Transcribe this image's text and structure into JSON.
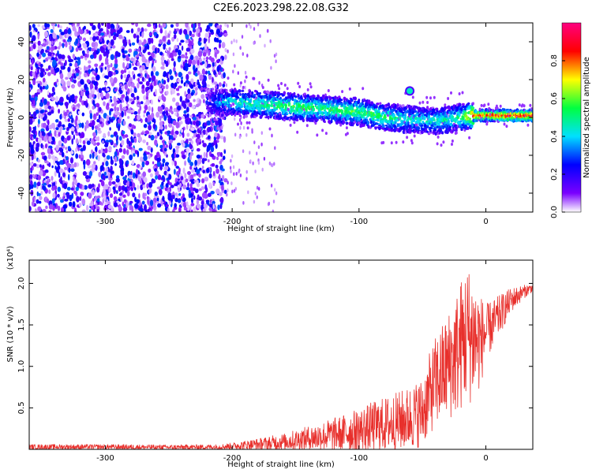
{
  "figure_title": "C2E6.2023.298.22.08.G32",
  "colors": {
    "snr_line": "#e8302c",
    "axis": "#000000",
    "background": "#ffffff"
  },
  "chart_data": [
    {
      "type": "heatmap",
      "title": "C2E6.2023.298.22.08.G32",
      "xlabel": "Height of straight line (km)",
      "ylabel": "Frequency (Hz)",
      "xlim": [
        -360,
        37
      ],
      "ylim": [
        -50,
        50
      ],
      "x_ticks": [
        -300,
        -200,
        -100,
        0
      ],
      "y_ticks": [
        -40,
        -20,
        0,
        20,
        40
      ],
      "colorbar": {
        "label": "Normalized spectral amplitude",
        "range": [
          0,
          1
        ],
        "ticks": [
          0.0,
          0.2,
          0.4,
          0.6,
          0.8
        ],
        "colormap": [
          "#ffffff",
          "#7a00ff",
          "#0000ff",
          "#00e0ff",
          "#00ff40",
          "#ffff00",
          "#ff0000",
          "#ff0080"
        ]
      },
      "signal_track": {
        "noise_region_x": [
          -360,
          -205
        ],
        "noise_amplitude": 0.2,
        "trace": [
          {
            "x": -220,
            "f": 8,
            "amp": 0.25
          },
          {
            "x": -200,
            "f": 8,
            "amp": 0.45
          },
          {
            "x": -180,
            "f": 7,
            "amp": 0.5
          },
          {
            "x": -160,
            "f": 6,
            "amp": 0.55
          },
          {
            "x": -140,
            "f": 5,
            "amp": 0.55
          },
          {
            "x": -120,
            "f": 4,
            "amp": 0.55
          },
          {
            "x": -100,
            "f": 3,
            "amp": 0.55
          },
          {
            "x": -80,
            "f": 0,
            "amp": 0.55
          },
          {
            "x": -60,
            "f": -1,
            "amp": 0.45
          },
          {
            "x": -40,
            "f": -2,
            "amp": 0.45
          },
          {
            "x": -20,
            "f": 0,
            "amp": 0.5
          },
          {
            "x": -10,
            "f": 1,
            "amp": 0.85
          },
          {
            "x": 0,
            "f": 1,
            "amp": 0.85
          },
          {
            "x": 20,
            "f": 1,
            "amp": 0.9
          },
          {
            "x": 37,
            "f": 1,
            "amp": 0.9
          }
        ],
        "feature": {
          "x": -60,
          "f": 14,
          "amp": 0.45
        }
      }
    },
    {
      "type": "line",
      "xlabel": "Height of straight line (km)",
      "ylabel": "SNR (10 * v/v)",
      "scale_note": "(x10⁴)",
      "xlim": [
        -360,
        37
      ],
      "ylim": [
        0,
        22800
      ],
      "x_ticks": [
        -300,
        -200,
        -100,
        0
      ],
      "y_ticks": [
        5000,
        10000,
        15000,
        20000
      ],
      "y_tick_labels": [
        "0.5",
        "1.0",
        "1.5",
        "2.0"
      ],
      "series": [
        {
          "x": [
            -360,
            -300,
            -250,
            -210,
            -200,
            -180,
            -160,
            -140,
            -120,
            -100,
            -90,
            -80,
            -70,
            -60,
            -50,
            -45,
            -40,
            -35,
            -30,
            -25,
            -20,
            -15,
            -10,
            -5,
            0,
            10,
            20,
            30,
            37
          ],
          "y": [
            300,
            300,
            250,
            300,
            400,
            600,
            900,
            1300,
            1800,
            2300,
            2700,
            3000,
            3300,
            3800,
            4500,
            6500,
            8000,
            9000,
            10000,
            11000,
            12500,
            14000,
            13500,
            13000,
            14000,
            16000,
            18000,
            19000,
            19500
          ],
          "noise_amp": [
            300,
            300,
            300,
            300,
            400,
            700,
            1000,
            1500,
            2000,
            2600,
            3000,
            3300,
            3600,
            3800,
            4200,
            4800,
            5500,
            6000,
            6500,
            7200,
            8000,
            8500,
            8000,
            6000,
            3500,
            2500,
            1500,
            800,
            500
          ]
        }
      ]
    }
  ]
}
